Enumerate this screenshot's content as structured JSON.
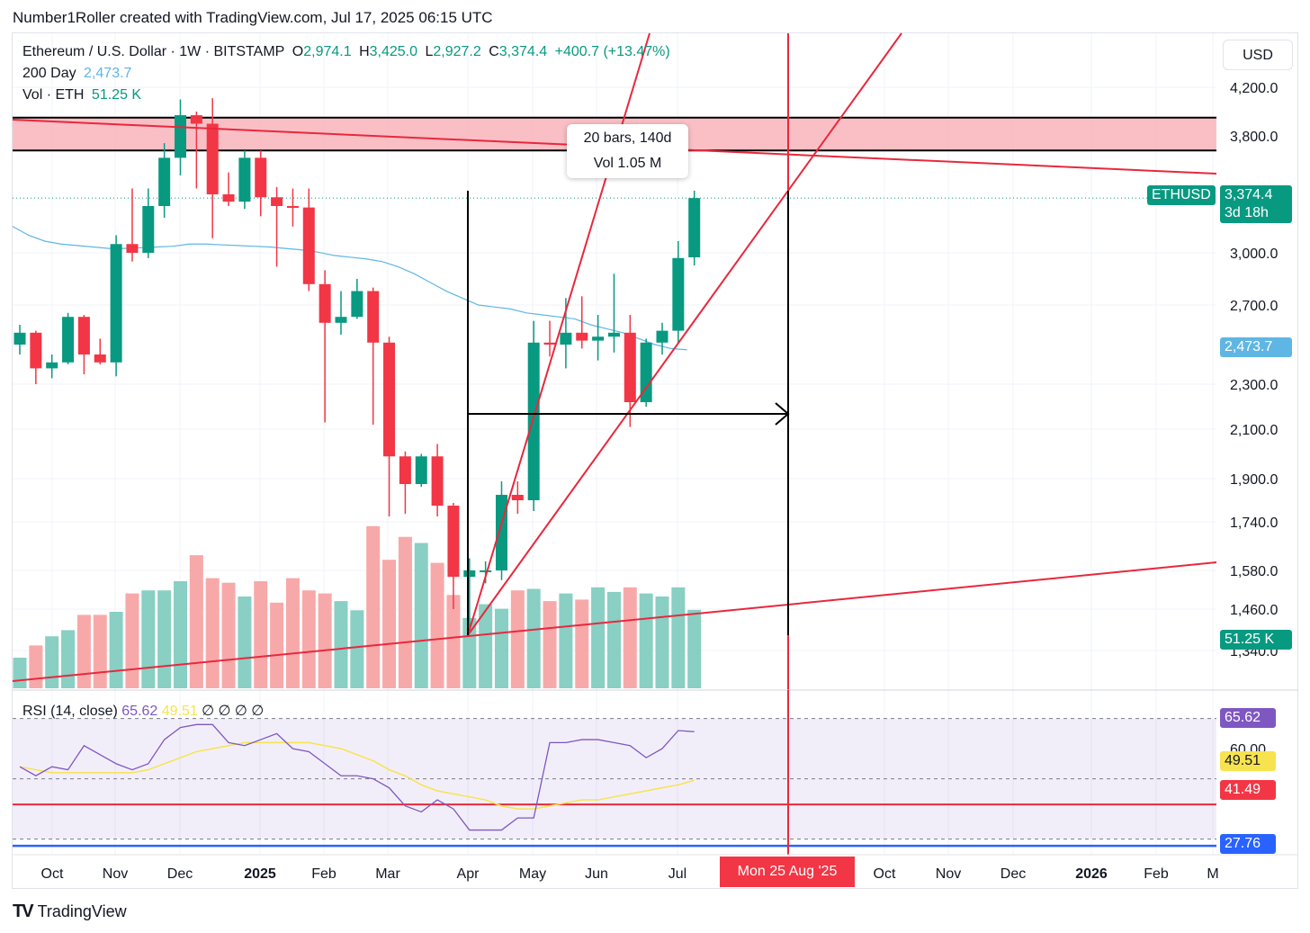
{
  "header": {
    "credit": "Number1Roller created with TradingView.com, Jul 17, 2025 06:15 UTC"
  },
  "legend": {
    "symbol": "Ethereum / U.S. Dollar · 1W · BITSTAMP",
    "o_label": "O",
    "o": "2,974.1",
    "h_label": "H",
    "h": "3,425.0",
    "l_label": "L",
    "l": "2,927.2",
    "c_label": "C",
    "c": "3,374.4",
    "change": "+400.7 (+13.47%)",
    "ma_label": "200 Day",
    "ma_value": "2,473.7",
    "vol_label": "Vol · ETH",
    "vol_value": "51.25 K"
  },
  "currency": "USD",
  "price_tags": {
    "symbol_tag": "ETHUSD",
    "last_price": "3,374.4",
    "countdown": "3d 18h",
    "ma_price": "2,473.7",
    "volume": "51.25 K"
  },
  "measure": {
    "bars": "20 bars, 140d",
    "vol": "Vol 1.05 M"
  },
  "rsi": {
    "label": "RSI (14, close)",
    "value": "65.62",
    "ma_value": "49.51",
    "blanks": "∅ ∅ ∅ ∅",
    "tags": [
      "65.62",
      "49.51",
      "41.49",
      "27.76"
    ],
    "axis_tick": "60.00"
  },
  "date_tag": "Mon 25 Aug '25",
  "footer": {
    "logo_mark": "TV",
    "logo_text": "TradingView"
  },
  "colors": {
    "up": "#089981",
    "down": "#f23645",
    "ma": "#5fb6e4",
    "rsi": "#7e57c2",
    "rsi_ma": "#f7e34f",
    "drawing": "#e8283d"
  },
  "chart_data": {
    "type": "candlestick",
    "title": "Ethereum / U.S. Dollar · 1W · BITSTAMP",
    "y_ticks": [
      4200,
      3800,
      3000,
      2700,
      2300,
      2100,
      1900,
      1740,
      1580,
      1460,
      1340
    ],
    "y_tick_labels": [
      "4,200.0",
      "3,800.0",
      "3,000.0",
      "2,700.0",
      "2,300.0",
      "2,100.0",
      "1,900.0",
      "1,740.0",
      "1,580.0",
      "1,460.0",
      "1,340.0"
    ],
    "x_ticks": [
      "Oct",
      "Nov",
      "Dec",
      "2025",
      "Feb",
      "Mar",
      "Apr",
      "May",
      "Jun",
      "Jul",
      "Oct",
      "Nov",
      "Dec",
      "2026",
      "Feb",
      "M"
    ],
    "candles": [
      {
        "o": 2500,
        "h": 2600,
        "l": 2450,
        "c": 2560
      },
      {
        "o": 2560,
        "h": 2570,
        "l": 2300,
        "c": 2380
      },
      {
        "o": 2380,
        "h": 2450,
        "l": 2330,
        "c": 2410
      },
      {
        "o": 2410,
        "h": 2660,
        "l": 2400,
        "c": 2640
      },
      {
        "o": 2640,
        "h": 2650,
        "l": 2350,
        "c": 2450
      },
      {
        "o": 2450,
        "h": 2530,
        "l": 2400,
        "c": 2410
      },
      {
        "o": 2410,
        "h": 3120,
        "l": 2340,
        "c": 3060
      },
      {
        "o": 3060,
        "h": 3440,
        "l": 2950,
        "c": 3000
      },
      {
        "o": 3000,
        "h": 3440,
        "l": 2970,
        "c": 3320
      },
      {
        "o": 3320,
        "h": 3750,
        "l": 3240,
        "c": 3650
      },
      {
        "o": 3650,
        "h": 4100,
        "l": 3530,
        "c": 3970
      },
      {
        "o": 3970,
        "h": 4000,
        "l": 3440,
        "c": 3900
      },
      {
        "o": 3900,
        "h": 4110,
        "l": 3100,
        "c": 3400
      },
      {
        "o": 3400,
        "h": 3550,
        "l": 3320,
        "c": 3350
      },
      {
        "o": 3350,
        "h": 3700,
        "l": 3300,
        "c": 3650
      },
      {
        "o": 3650,
        "h": 3700,
        "l": 3250,
        "c": 3380
      },
      {
        "o": 3380,
        "h": 3450,
        "l": 2920,
        "c": 3320
      },
      {
        "o": 3320,
        "h": 3440,
        "l": 3180,
        "c": 3310
      },
      {
        "o": 3310,
        "h": 3440,
        "l": 2780,
        "c": 2820
      },
      {
        "o": 2820,
        "h": 2900,
        "l": 2130,
        "c": 2610
      },
      {
        "o": 2610,
        "h": 2780,
        "l": 2550,
        "c": 2640
      },
      {
        "o": 2640,
        "h": 2850,
        "l": 2630,
        "c": 2780
      },
      {
        "o": 2780,
        "h": 2800,
        "l": 2120,
        "c": 2510
      },
      {
        "o": 2510,
        "h": 2540,
        "l": 1760,
        "c": 1990
      },
      {
        "o": 1990,
        "h": 2010,
        "l": 1770,
        "c": 1880
      },
      {
        "o": 1880,
        "h": 2000,
        "l": 1870,
        "c": 1990
      },
      {
        "o": 1990,
        "h": 2040,
        "l": 1760,
        "c": 1800
      },
      {
        "o": 1800,
        "h": 1810,
        "l": 1460,
        "c": 1560
      },
      {
        "o": 1560,
        "h": 1620,
        "l": 1390,
        "c": 1580
      },
      {
        "o": 1580,
        "h": 1610,
        "l": 1540,
        "c": 1580
      },
      {
        "o": 1580,
        "h": 1890,
        "l": 1550,
        "c": 1840
      },
      {
        "o": 1840,
        "h": 1890,
        "l": 1770,
        "c": 1820
      },
      {
        "o": 1820,
        "h": 2620,
        "l": 1780,
        "c": 2510
      },
      {
        "o": 2510,
        "h": 2620,
        "l": 2440,
        "c": 2500
      },
      {
        "o": 2500,
        "h": 2740,
        "l": 2380,
        "c": 2560
      },
      {
        "o": 2560,
        "h": 2750,
        "l": 2480,
        "c": 2520
      },
      {
        "o": 2520,
        "h": 2650,
        "l": 2420,
        "c": 2540
      },
      {
        "o": 2540,
        "h": 2880,
        "l": 2460,
        "c": 2560
      },
      {
        "o": 2560,
        "h": 2650,
        "l": 2110,
        "c": 2220
      },
      {
        "o": 2220,
        "h": 2530,
        "l": 2200,
        "c": 2510
      },
      {
        "o": 2510,
        "h": 2610,
        "l": 2450,
        "c": 2570
      },
      {
        "o": 2570,
        "h": 3080,
        "l": 2510,
        "c": 2970
      },
      {
        "o": 2974.1,
        "h": 3425,
        "l": 2927.2,
        "c": 3374.4
      }
    ],
    "ma200": [
      3180,
      3120,
      3080,
      3060,
      3050,
      3040,
      3030,
      3030,
      3035,
      3040,
      3045,
      3060,
      3060,
      3055,
      3050,
      3045,
      3040,
      3030,
      3020,
      3005,
      2985,
      2975,
      2965,
      2950,
      2920,
      2880,
      2830,
      2780,
      2740,
      2700,
      2690,
      2680,
      2660,
      2650,
      2640,
      2630,
      2600,
      2580,
      2560,
      2530,
      2500,
      2480,
      2473.7
    ],
    "volume_k": [
      20,
      28,
      34,
      38,
      48,
      48,
      50,
      62,
      64,
      64,
      70,
      87,
      72,
      69,
      60,
      70,
      56,
      72,
      64,
      62,
      57,
      51,
      106,
      84,
      99,
      95,
      82,
      61,
      46,
      55,
      52,
      64,
      65,
      57,
      62,
      58,
      66,
      63,
      66,
      62,
      60,
      66,
      51.25
    ],
    "rsi": [
      54,
      51,
      54,
      53,
      61,
      58,
      55,
      53,
      55,
      63,
      67,
      68,
      68,
      62,
      61,
      63,
      65,
      60,
      59,
      55,
      51,
      51,
      50,
      47,
      41,
      39,
      43,
      40,
      33,
      33,
      33,
      37,
      37,
      62,
      62,
      63,
      63,
      62,
      61,
      57,
      60,
      66,
      65.62
    ],
    "rsi_ma": [
      54,
      53,
      52,
      52,
      52,
      52,
      52,
      52,
      53,
      55,
      57,
      59,
      60,
      61,
      62,
      62,
      62,
      62,
      62,
      61,
      60,
      58,
      56,
      53,
      51,
      48,
      46,
      45,
      44,
      43,
      41,
      40,
      40,
      41,
      42,
      43,
      43,
      44,
      45,
      46,
      47,
      48,
      49.51
    ],
    "rsi_levels": [
      41.49,
      27.76
    ],
    "measure": {
      "bars": 20,
      "days": 140,
      "volume": "1.05 M"
    },
    "projection_date": "Mon 25 Aug '25",
    "resistance_zone": [
      3700,
      3950
    ]
  }
}
